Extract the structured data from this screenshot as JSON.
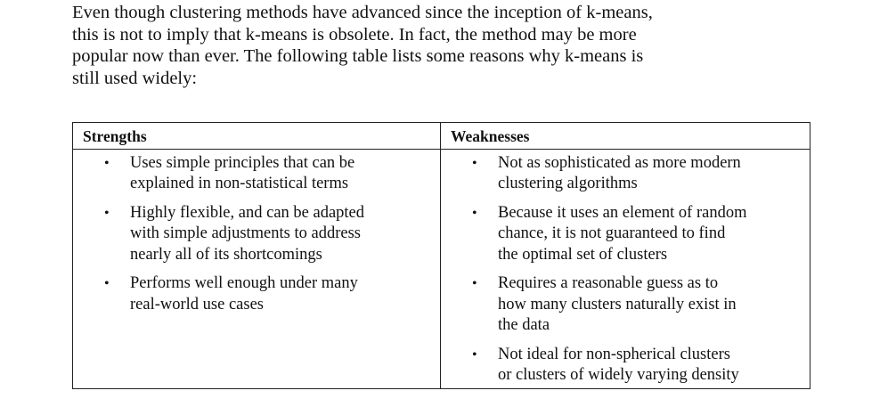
{
  "intro": {
    "lines": [
      "Even though clustering methods have advanced since the inception of k-means,",
      "this is not to imply that k-means is obsolete. In fact, the method may be more",
      "popular now than ever. The following table lists some reasons why k-means is",
      "still used widely:"
    ]
  },
  "table": {
    "bullet_glyph": "•",
    "headers": {
      "strengths": "Strengths",
      "weaknesses": "Weaknesses"
    },
    "strengths": [
      {
        "lines": [
          "Uses simple principles that can be",
          "explained in non-statistical terms"
        ]
      },
      {
        "lines": [
          "Highly flexible, and can be adapted",
          "with simple adjustments to address",
          "nearly all of its shortcomings"
        ]
      },
      {
        "lines": [
          "Performs well enough under many",
          "real-world use cases"
        ]
      }
    ],
    "weaknesses": [
      {
        "lines": [
          "Not as sophisticated as more modern",
          "clustering algorithms"
        ]
      },
      {
        "lines": [
          "Because it uses an element of random",
          "chance, it is not guaranteed to find",
          "the optimal set of clusters"
        ]
      },
      {
        "lines": [
          "Requires a reasonable guess as to",
          "how many clusters naturally exist in",
          "the data"
        ]
      },
      {
        "lines": [
          "Not ideal for non-spherical clusters",
          "or clusters of widely varying density"
        ]
      }
    ]
  }
}
